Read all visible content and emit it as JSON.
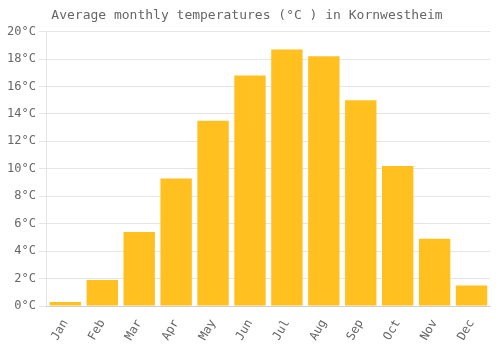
{
  "chart_data": {
    "type": "bar",
    "title": "Average monthly temperatures (°C ) in Kornwestheim",
    "categories": [
      "Jan",
      "Feb",
      "Mar",
      "Apr",
      "May",
      "Jun",
      "Jul",
      "Aug",
      "Sep",
      "Oct",
      "Nov",
      "Dec"
    ],
    "values": [
      0.3,
      1.9,
      5.4,
      9.3,
      13.5,
      16.8,
      18.7,
      18.2,
      15.0,
      10.2,
      4.9,
      1.5
    ],
    "color": "#FFC020",
    "ylim": [
      0,
      20
    ],
    "yticks": [
      {
        "value": 0,
        "label": "0°C"
      },
      {
        "value": 2,
        "label": "2°C"
      },
      {
        "value": 4,
        "label": "4°C"
      },
      {
        "value": 6,
        "label": "6°C"
      },
      {
        "value": 8,
        "label": "8°C"
      },
      {
        "value": 10,
        "label": "10°C"
      },
      {
        "value": 12,
        "label": "12°C"
      },
      {
        "value": 14,
        "label": "14°C"
      },
      {
        "value": 16,
        "label": "16°C"
      },
      {
        "value": 18,
        "label": "18°C"
      },
      {
        "value": 20,
        "label": "20°C"
      }
    ],
    "grid": true
  }
}
